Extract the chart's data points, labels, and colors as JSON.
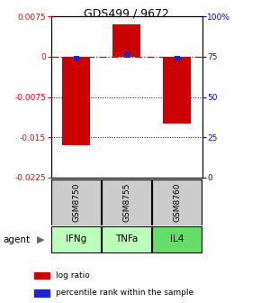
{
  "title": "GDS499 / 9672",
  "samples": [
    "GSM8750",
    "GSM8755",
    "GSM8760"
  ],
  "agents": [
    "IFNg",
    "TNFa",
    "IL4"
  ],
  "log_ratios": [
    -0.0165,
    0.006,
    -0.0125
  ],
  "percentile_ranks": [
    0.74,
    0.76,
    0.74
  ],
  "ylim": [
    -0.0225,
    0.0075
  ],
  "yticks_left": [
    0.0075,
    0.0,
    -0.0075,
    -0.015,
    -0.0225
  ],
  "yticks_left_labels": [
    "0.0075",
    "0",
    "-0.0075",
    "-0.015",
    "-0.0225"
  ],
  "yticks_right_vals": [
    1.0,
    0.75,
    0.5,
    0.25,
    0.0
  ],
  "yticks_right_labels": [
    "100%",
    "75",
    "50",
    "25",
    "0"
  ],
  "bar_color": "#cc0000",
  "dot_color": "#2222cc",
  "zero_line_color": "#cc0000",
  "grid_color": "#000000",
  "agent_colors": [
    "#bbffbb",
    "#bbffbb",
    "#66dd66"
  ],
  "sample_bg": "#cccccc",
  "legend_bar_color": "#cc0000",
  "legend_dot_color": "#2222cc"
}
